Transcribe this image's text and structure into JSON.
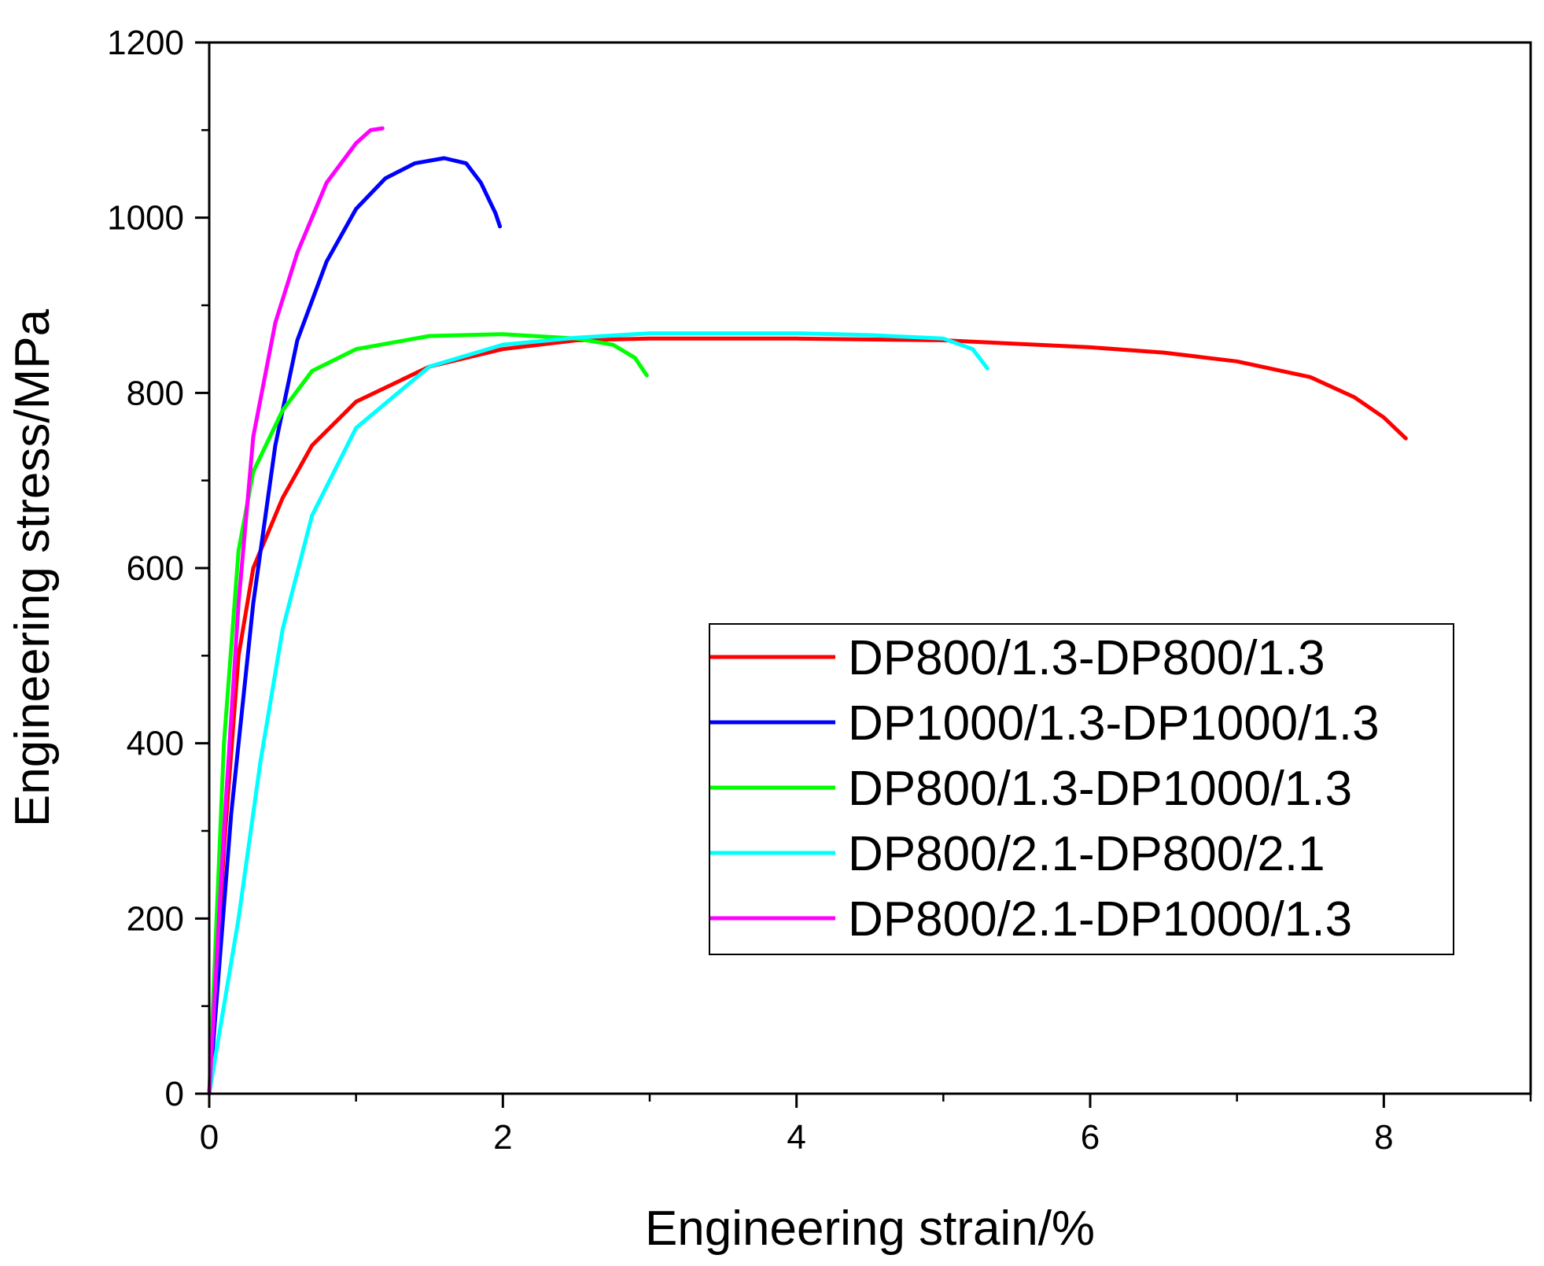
{
  "chart_data": {
    "type": "line",
    "title": "",
    "xlabel": "Engineering strain/%",
    "ylabel": "Engineering stress/MPa",
    "xlim": [
      0,
      9
    ],
    "ylim": [
      0,
      1200
    ],
    "x_ticks": [
      "0",
      "2",
      "4",
      "6",
      "8"
    ],
    "x_tick_values": [
      0,
      2,
      4,
      6,
      8
    ],
    "y_ticks": [
      "0",
      "200",
      "400",
      "600",
      "800",
      "1000",
      "1200"
    ],
    "y_tick_values": [
      0,
      200,
      400,
      600,
      800,
      1000,
      1200
    ],
    "grid": false,
    "legend_position": "center-right",
    "series": [
      {
        "name": "DP800/1.3-DP800/1.3",
        "color": "#ff0000",
        "points": [
          [
            0,
            0
          ],
          [
            0.1,
            280
          ],
          [
            0.2,
            500
          ],
          [
            0.3,
            600
          ],
          [
            0.5,
            680
          ],
          [
            0.7,
            740
          ],
          [
            1.0,
            790
          ],
          [
            1.5,
            830
          ],
          [
            2.0,
            850
          ],
          [
            2.5,
            860
          ],
          [
            3.0,
            862
          ],
          [
            4.0,
            862
          ],
          [
            5.0,
            860
          ],
          [
            6.0,
            852
          ],
          [
            6.5,
            846
          ],
          [
            7.0,
            836
          ],
          [
            7.5,
            818
          ],
          [
            7.8,
            795
          ],
          [
            8.0,
            772
          ],
          [
            8.15,
            748
          ]
        ]
      },
      {
        "name": "DP1000/1.3-DP1000/1.3",
        "color": "#0000ff",
        "points": [
          [
            0,
            0
          ],
          [
            0.15,
            320
          ],
          [
            0.3,
            560
          ],
          [
            0.45,
            740
          ],
          [
            0.6,
            860
          ],
          [
            0.8,
            950
          ],
          [
            1.0,
            1010
          ],
          [
            1.2,
            1045
          ],
          [
            1.4,
            1062
          ],
          [
            1.6,
            1068
          ],
          [
            1.75,
            1062
          ],
          [
            1.85,
            1040
          ],
          [
            1.95,
            1005
          ],
          [
            1.98,
            990
          ]
        ]
      },
      {
        "name": "DP800/1.3-DP1000/1.3",
        "color": "#00ff00",
        "points": [
          [
            0,
            0
          ],
          [
            0.1,
            400
          ],
          [
            0.2,
            620
          ],
          [
            0.3,
            710
          ],
          [
            0.5,
            780
          ],
          [
            0.7,
            825
          ],
          [
            1.0,
            850
          ],
          [
            1.5,
            865
          ],
          [
            2.0,
            867
          ],
          [
            2.5,
            862
          ],
          [
            2.75,
            855
          ],
          [
            2.9,
            840
          ],
          [
            2.98,
            820
          ]
        ]
      },
      {
        "name": "DP800/2.1-DP800/2.1",
        "color": "#00ffff",
        "points": [
          [
            0,
            0
          ],
          [
            0.2,
            200
          ],
          [
            0.35,
            380
          ],
          [
            0.5,
            530
          ],
          [
            0.7,
            660
          ],
          [
            1.0,
            760
          ],
          [
            1.5,
            830
          ],
          [
            2.0,
            855
          ],
          [
            2.5,
            863
          ],
          [
            3.0,
            868
          ],
          [
            4.0,
            868
          ],
          [
            4.5,
            866
          ],
          [
            5.0,
            862
          ],
          [
            5.2,
            850
          ],
          [
            5.3,
            828
          ]
        ]
      },
      {
        "name": "DP800/2.1-DP1000/1.3",
        "color": "#ff00ff",
        "points": [
          [
            0,
            0
          ],
          [
            0.1,
            300
          ],
          [
            0.2,
            560
          ],
          [
            0.3,
            750
          ],
          [
            0.45,
            880
          ],
          [
            0.6,
            960
          ],
          [
            0.8,
            1040
          ],
          [
            1.0,
            1085
          ],
          [
            1.1,
            1100
          ],
          [
            1.18,
            1102
          ]
        ]
      }
    ]
  }
}
